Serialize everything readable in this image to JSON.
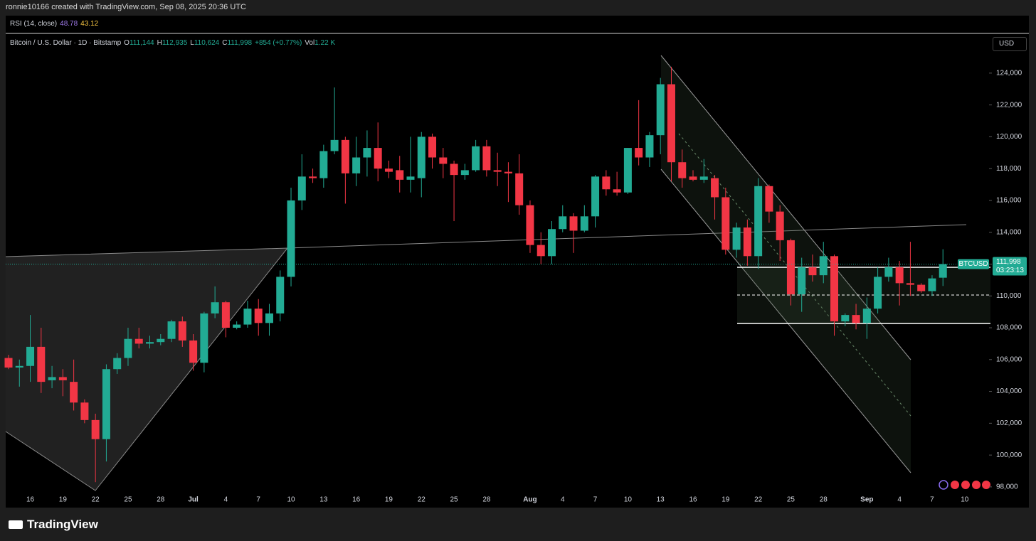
{
  "header": "ronnie10166 created with TradingView.com, Sep 08, 2025 20:36 UTC",
  "indicator": {
    "name": "RSI (14, close)",
    "value1": "48.78",
    "value2": "43.12"
  },
  "chart_data": {
    "type": "candlestick",
    "title": "Bitcoin / U.S. Dollar · 1D · Bitstamp",
    "legend": {
      "o_label": "O",
      "o": "111,144",
      "h_label": "H",
      "h": "112,935",
      "l_label": "L",
      "l": "110,624",
      "c_label": "C",
      "c": "111,998",
      "change": "+854 (+0.77%)",
      "vol_label": "Vol",
      "vol": "1.22 K"
    },
    "currency": "USD",
    "symbol": "BTCUSD",
    "last_price_label": "111,998",
    "countdown": "03:23:13",
    "up_color": "#22ab94",
    "down_color": "#f23645",
    "categories": [
      null,
      null,
      "16",
      null,
      null,
      "19",
      null,
      null,
      "22",
      null,
      null,
      "25",
      null,
      null,
      "28",
      null,
      null,
      "Jul",
      null,
      null,
      "4",
      null,
      null,
      "7",
      null,
      null,
      "10",
      null,
      null,
      "13",
      null,
      null,
      "16",
      null,
      null,
      "19",
      null,
      null,
      "22",
      null,
      null,
      "25",
      null,
      null,
      "28",
      null,
      null,
      null,
      "Aug",
      null,
      null,
      "4",
      null,
      null,
      "7",
      null,
      null,
      "10",
      null,
      null,
      "13",
      null,
      null,
      "16",
      null,
      null,
      "19",
      null,
      null,
      "22",
      null,
      null,
      "25",
      null,
      null,
      "28",
      null,
      null,
      null,
      "Sep",
      null,
      null,
      "4",
      null,
      null,
      "7",
      null,
      null,
      "10"
    ],
    "open": [
      106100,
      105500,
      105600,
      106800,
      104700,
      104900,
      104600,
      103300,
      102200,
      101000,
      105400,
      106100,
      107300,
      107000,
      107100,
      107300,
      108400,
      107200,
      105800,
      108900,
      109600,
      108000,
      108200,
      109200,
      108300,
      108900,
      111200,
      116000,
      117500,
      117400,
      119100,
      119800,
      117700,
      118700,
      119300,
      118000,
      117900,
      117300,
      117400,
      120000,
      118700,
      118300,
      117600,
      117900,
      119400,
      117900,
      117800,
      117700,
      115700,
      113200,
      112500,
      114200,
      115000,
      114100,
      115000,
      117500,
      116700,
      116500,
      119300,
      118700,
      120100,
      123300,
      118400,
      117500,
      117300,
      117400,
      116200,
      112900,
      114300,
      112500,
      116900,
      115300,
      113500,
      110100,
      111800,
      111300,
      112500,
      108400,
      108800,
      108300,
      109200,
      111200,
      111800,
      110800,
      110700,
      110300,
      111144,
      null,
      null
    ],
    "high": [
      106300,
      106000,
      108800,
      108000,
      105600,
      105400,
      106000,
      103500,
      102600,
      105700,
      106400,
      108000,
      108000,
      107500,
      107600,
      108500,
      108700,
      107600,
      109000,
      110600,
      109700,
      108400,
      109700,
      109800,
      109500,
      111600,
      116800,
      118900,
      118000,
      119500,
      123100,
      120000,
      120000,
      120400,
      120900,
      118500,
      118800,
      120000,
      120300,
      120200,
      119300,
      118500,
      118300,
      119800,
      119800,
      119000,
      118400,
      118900,
      116000,
      114000,
      114700,
      115700,
      115200,
      115700,
      117600,
      117900,
      117800,
      119300,
      122300,
      120300,
      123700,
      124400,
      119200,
      117900,
      118600,
      117600,
      116800,
      114600,
      114800,
      117400,
      117000,
      115700,
      113600,
      112400,
      112600,
      113400,
      112600,
      108900,
      109500,
      109900,
      111800,
      112400,
      112200,
      113400,
      110800,
      111300,
      112935,
      null,
      null
    ],
    "low": [
      105400,
      104300,
      104600,
      103900,
      104200,
      103700,
      102800,
      102000,
      98300,
      99600,
      105100,
      105600,
      106700,
      106700,
      106900,
      107100,
      106800,
      105300,
      105200,
      108600,
      107400,
      107900,
      108000,
      107500,
      107500,
      108400,
      110600,
      115400,
      117100,
      116800,
      118900,
      115800,
      116900,
      117500,
      117200,
      117400,
      116500,
      116500,
      116200,
      118000,
      117400,
      114700,
      117300,
      117800,
      117500,
      116900,
      115900,
      115100,
      112700,
      112000,
      112000,
      114000,
      112700,
      114000,
      114300,
      116300,
      116300,
      116400,
      118200,
      118100,
      118900,
      117200,
      116800,
      117200,
      117100,
      114800,
      112600,
      112400,
      111900,
      111700,
      114600,
      112200,
      109400,
      109000,
      110900,
      110800,
      107500,
      108100,
      107900,
      107300,
      108900,
      110900,
      109400,
      110000,
      110200,
      110000,
      110624,
      null,
      null
    ],
    "close": [
      105500,
      105600,
      106800,
      104600,
      104900,
      104700,
      103300,
      102200,
      101000,
      105400,
      106100,
      107300,
      107000,
      107100,
      107300,
      108400,
      107200,
      105800,
      108900,
      109600,
      108000,
      108200,
      109200,
      108300,
      108900,
      111200,
      116000,
      117500,
      117400,
      119100,
      119800,
      117700,
      118700,
      119300,
      118000,
      117800,
      117300,
      117500,
      120000,
      118700,
      118300,
      117600,
      117900,
      119400,
      117900,
      117800,
      117700,
      115700,
      113200,
      112500,
      114200,
      115000,
      114100,
      115000,
      117500,
      116700,
      116500,
      119300,
      118700,
      120100,
      123300,
      118400,
      117400,
      117300,
      117500,
      116200,
      112900,
      114300,
      112500,
      116900,
      115300,
      113500,
      110100,
      111800,
      111300,
      112500,
      108400,
      108800,
      108300,
      109200,
      111200,
      111800,
      110800,
      110700,
      110300,
      111100,
      111998,
      null,
      null
    ],
    "ylim": [
      96700,
      126450
    ],
    "yticks": [
      {
        "value": 98000,
        "label": "98,000"
      },
      {
        "value": 100000,
        "label": "100,000"
      },
      {
        "value": 102000,
        "label": "102,000"
      },
      {
        "value": 104000,
        "label": "104,000"
      },
      {
        "value": 106000,
        "label": "106,000"
      },
      {
        "value": 108000,
        "label": "108,000"
      },
      {
        "value": 110000,
        "label": "110,000"
      },
      {
        "value": 112000,
        "label": "112,000"
      },
      {
        "value": 114000,
        "label": "114,000"
      },
      {
        "value": 116000,
        "label": "116,000"
      },
      {
        "value": 118000,
        "label": "118,000"
      },
      {
        "value": 120000,
        "label": "120,000"
      },
      {
        "value": 122000,
        "label": "122,000"
      },
      {
        "value": 124000,
        "label": "124,000"
      }
    ]
  },
  "footer": "TradingView"
}
